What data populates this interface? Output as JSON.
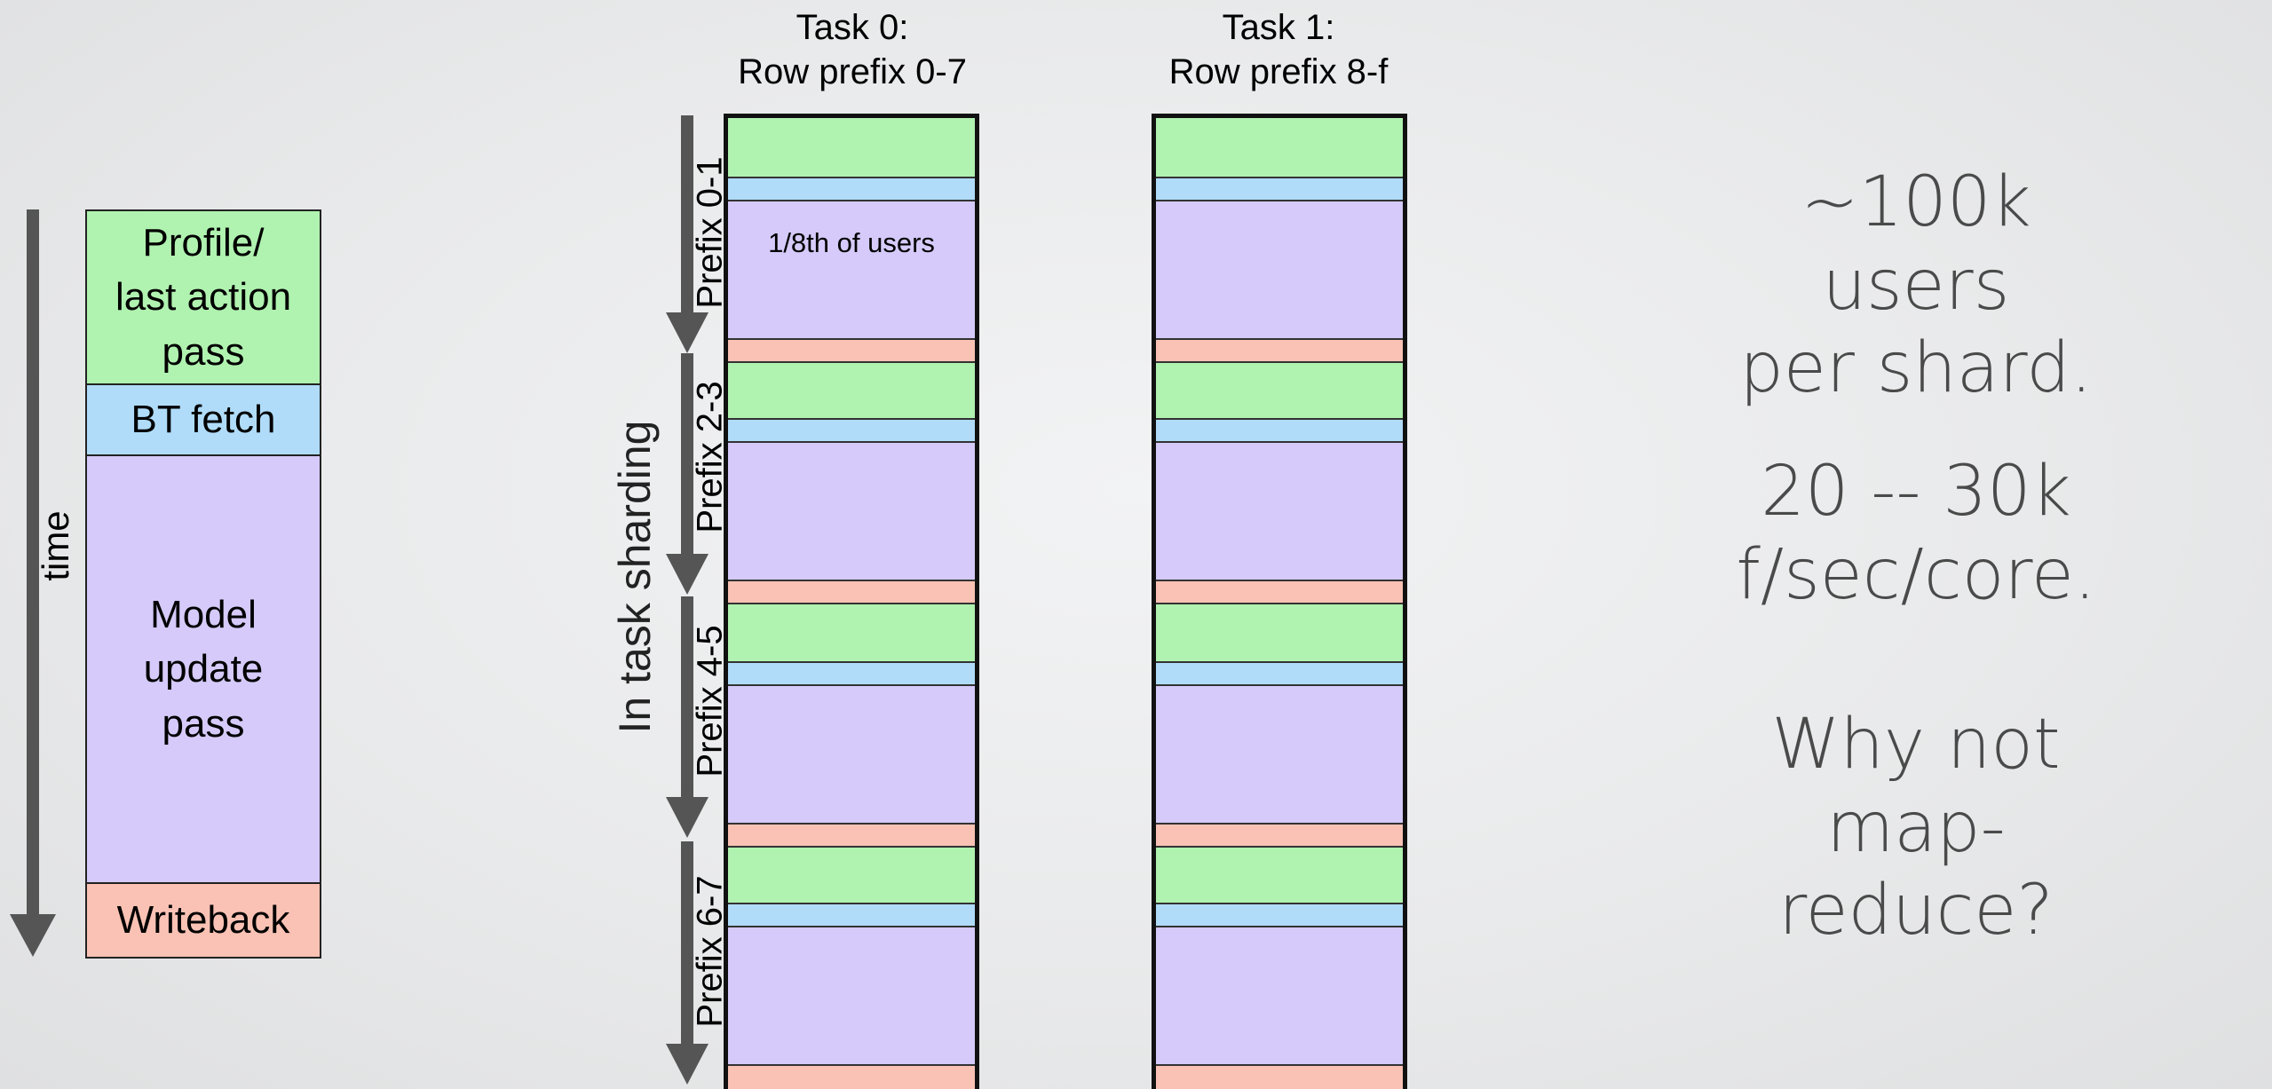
{
  "legend": {
    "time_label": "time",
    "segments": [
      {
        "label": "Profile/\nlast action\npass",
        "color": "#b0f2b0"
      },
      {
        "label": "BT fetch",
        "color": "#b0dcfa"
      },
      {
        "label": "Model\nupdate\npass",
        "color": "#d5caf9"
      },
      {
        "label": "Writeback",
        "color": "#f9c2b4"
      }
    ]
  },
  "tasks": [
    {
      "header": "Task 0:\nRow prefix 0-7"
    },
    {
      "header": "Task 1:\nRow prefix 8-f"
    }
  ],
  "block_label": "1/8th of users",
  "sharding_label": "In task sharding",
  "prefixes": [
    "Prefix 0-1",
    "Prefix 2-3",
    "Prefix 4-5",
    "Prefix 6-7"
  ],
  "notes": {
    "users": "~100k users\nper shard.",
    "rate": "20 -- 30k f/sec/core.",
    "question": "Why not\nmap-reduce?"
  }
}
